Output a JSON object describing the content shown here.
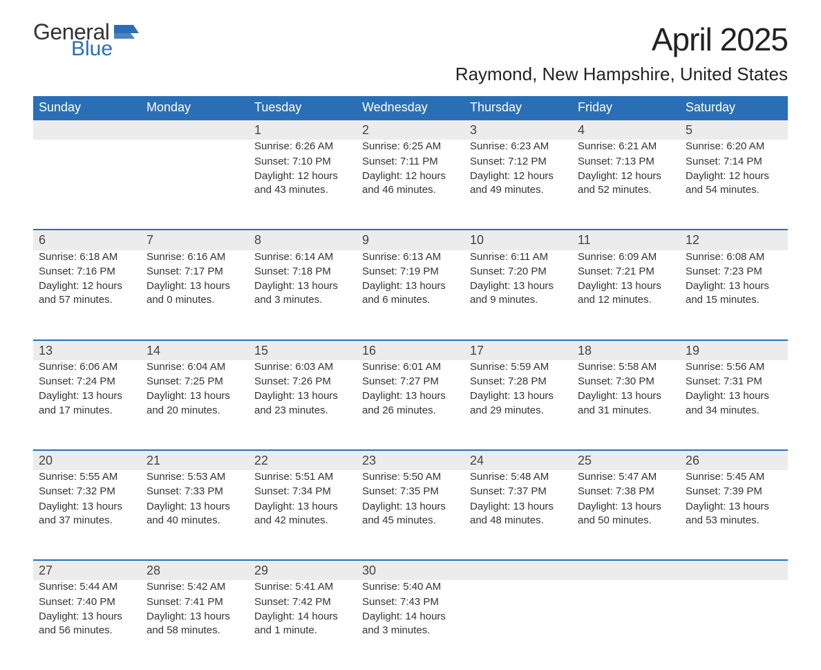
{
  "logo": {
    "general": "General",
    "blue": "Blue",
    "flag_color": "#2a6fb5"
  },
  "title": "April 2025",
  "location": "Raymond, New Hampshire, United States",
  "colors": {
    "header_bg": "#2a6fb5",
    "header_text": "#ffffff",
    "daynum_bg": "#ececec",
    "daynum_border": "#2a6fb5",
    "body_text": "#333333",
    "page_bg": "#ffffff"
  },
  "fonts": {
    "title_size_pt": 34,
    "location_size_pt": 20,
    "header_size_pt": 14,
    "cell_size_pt": 11,
    "daynum_size_pt": 14
  },
  "day_headers": [
    "Sunday",
    "Monday",
    "Tuesday",
    "Wednesday",
    "Thursday",
    "Friday",
    "Saturday"
  ],
  "weeks": [
    [
      null,
      null,
      {
        "num": "1",
        "sunrise": "Sunrise: 6:26 AM",
        "sunset": "Sunset: 7:10 PM",
        "daylight": "Daylight: 12 hours and 43 minutes."
      },
      {
        "num": "2",
        "sunrise": "Sunrise: 6:25 AM",
        "sunset": "Sunset: 7:11 PM",
        "daylight": "Daylight: 12 hours and 46 minutes."
      },
      {
        "num": "3",
        "sunrise": "Sunrise: 6:23 AM",
        "sunset": "Sunset: 7:12 PM",
        "daylight": "Daylight: 12 hours and 49 minutes."
      },
      {
        "num": "4",
        "sunrise": "Sunrise: 6:21 AM",
        "sunset": "Sunset: 7:13 PM",
        "daylight": "Daylight: 12 hours and 52 minutes."
      },
      {
        "num": "5",
        "sunrise": "Sunrise: 6:20 AM",
        "sunset": "Sunset: 7:14 PM",
        "daylight": "Daylight: 12 hours and 54 minutes."
      }
    ],
    [
      {
        "num": "6",
        "sunrise": "Sunrise: 6:18 AM",
        "sunset": "Sunset: 7:16 PM",
        "daylight": "Daylight: 12 hours and 57 minutes."
      },
      {
        "num": "7",
        "sunrise": "Sunrise: 6:16 AM",
        "sunset": "Sunset: 7:17 PM",
        "daylight": "Daylight: 13 hours and 0 minutes."
      },
      {
        "num": "8",
        "sunrise": "Sunrise: 6:14 AM",
        "sunset": "Sunset: 7:18 PM",
        "daylight": "Daylight: 13 hours and 3 minutes."
      },
      {
        "num": "9",
        "sunrise": "Sunrise: 6:13 AM",
        "sunset": "Sunset: 7:19 PM",
        "daylight": "Daylight: 13 hours and 6 minutes."
      },
      {
        "num": "10",
        "sunrise": "Sunrise: 6:11 AM",
        "sunset": "Sunset: 7:20 PM",
        "daylight": "Daylight: 13 hours and 9 minutes."
      },
      {
        "num": "11",
        "sunrise": "Sunrise: 6:09 AM",
        "sunset": "Sunset: 7:21 PM",
        "daylight": "Daylight: 13 hours and 12 minutes."
      },
      {
        "num": "12",
        "sunrise": "Sunrise: 6:08 AM",
        "sunset": "Sunset: 7:23 PM",
        "daylight": "Daylight: 13 hours and 15 minutes."
      }
    ],
    [
      {
        "num": "13",
        "sunrise": "Sunrise: 6:06 AM",
        "sunset": "Sunset: 7:24 PM",
        "daylight": "Daylight: 13 hours and 17 minutes."
      },
      {
        "num": "14",
        "sunrise": "Sunrise: 6:04 AM",
        "sunset": "Sunset: 7:25 PM",
        "daylight": "Daylight: 13 hours and 20 minutes."
      },
      {
        "num": "15",
        "sunrise": "Sunrise: 6:03 AM",
        "sunset": "Sunset: 7:26 PM",
        "daylight": "Daylight: 13 hours and 23 minutes."
      },
      {
        "num": "16",
        "sunrise": "Sunrise: 6:01 AM",
        "sunset": "Sunset: 7:27 PM",
        "daylight": "Daylight: 13 hours and 26 minutes."
      },
      {
        "num": "17",
        "sunrise": "Sunrise: 5:59 AM",
        "sunset": "Sunset: 7:28 PM",
        "daylight": "Daylight: 13 hours and 29 minutes."
      },
      {
        "num": "18",
        "sunrise": "Sunrise: 5:58 AM",
        "sunset": "Sunset: 7:30 PM",
        "daylight": "Daylight: 13 hours and 31 minutes."
      },
      {
        "num": "19",
        "sunrise": "Sunrise: 5:56 AM",
        "sunset": "Sunset: 7:31 PM",
        "daylight": "Daylight: 13 hours and 34 minutes."
      }
    ],
    [
      {
        "num": "20",
        "sunrise": "Sunrise: 5:55 AM",
        "sunset": "Sunset: 7:32 PM",
        "daylight": "Daylight: 13 hours and 37 minutes."
      },
      {
        "num": "21",
        "sunrise": "Sunrise: 5:53 AM",
        "sunset": "Sunset: 7:33 PM",
        "daylight": "Daylight: 13 hours and 40 minutes."
      },
      {
        "num": "22",
        "sunrise": "Sunrise: 5:51 AM",
        "sunset": "Sunset: 7:34 PM",
        "daylight": "Daylight: 13 hours and 42 minutes."
      },
      {
        "num": "23",
        "sunrise": "Sunrise: 5:50 AM",
        "sunset": "Sunset: 7:35 PM",
        "daylight": "Daylight: 13 hours and 45 minutes."
      },
      {
        "num": "24",
        "sunrise": "Sunrise: 5:48 AM",
        "sunset": "Sunset: 7:37 PM",
        "daylight": "Daylight: 13 hours and 48 minutes."
      },
      {
        "num": "25",
        "sunrise": "Sunrise: 5:47 AM",
        "sunset": "Sunset: 7:38 PM",
        "daylight": "Daylight: 13 hours and 50 minutes."
      },
      {
        "num": "26",
        "sunrise": "Sunrise: 5:45 AM",
        "sunset": "Sunset: 7:39 PM",
        "daylight": "Daylight: 13 hours and 53 minutes."
      }
    ],
    [
      {
        "num": "27",
        "sunrise": "Sunrise: 5:44 AM",
        "sunset": "Sunset: 7:40 PM",
        "daylight": "Daylight: 13 hours and 56 minutes."
      },
      {
        "num": "28",
        "sunrise": "Sunrise: 5:42 AM",
        "sunset": "Sunset: 7:41 PM",
        "daylight": "Daylight: 13 hours and 58 minutes."
      },
      {
        "num": "29",
        "sunrise": "Sunrise: 5:41 AM",
        "sunset": "Sunset: 7:42 PM",
        "daylight": "Daylight: 14 hours and 1 minute."
      },
      {
        "num": "30",
        "sunrise": "Sunrise: 5:40 AM",
        "sunset": "Sunset: 7:43 PM",
        "daylight": "Daylight: 14 hours and 3 minutes."
      },
      null,
      null,
      null
    ]
  ]
}
